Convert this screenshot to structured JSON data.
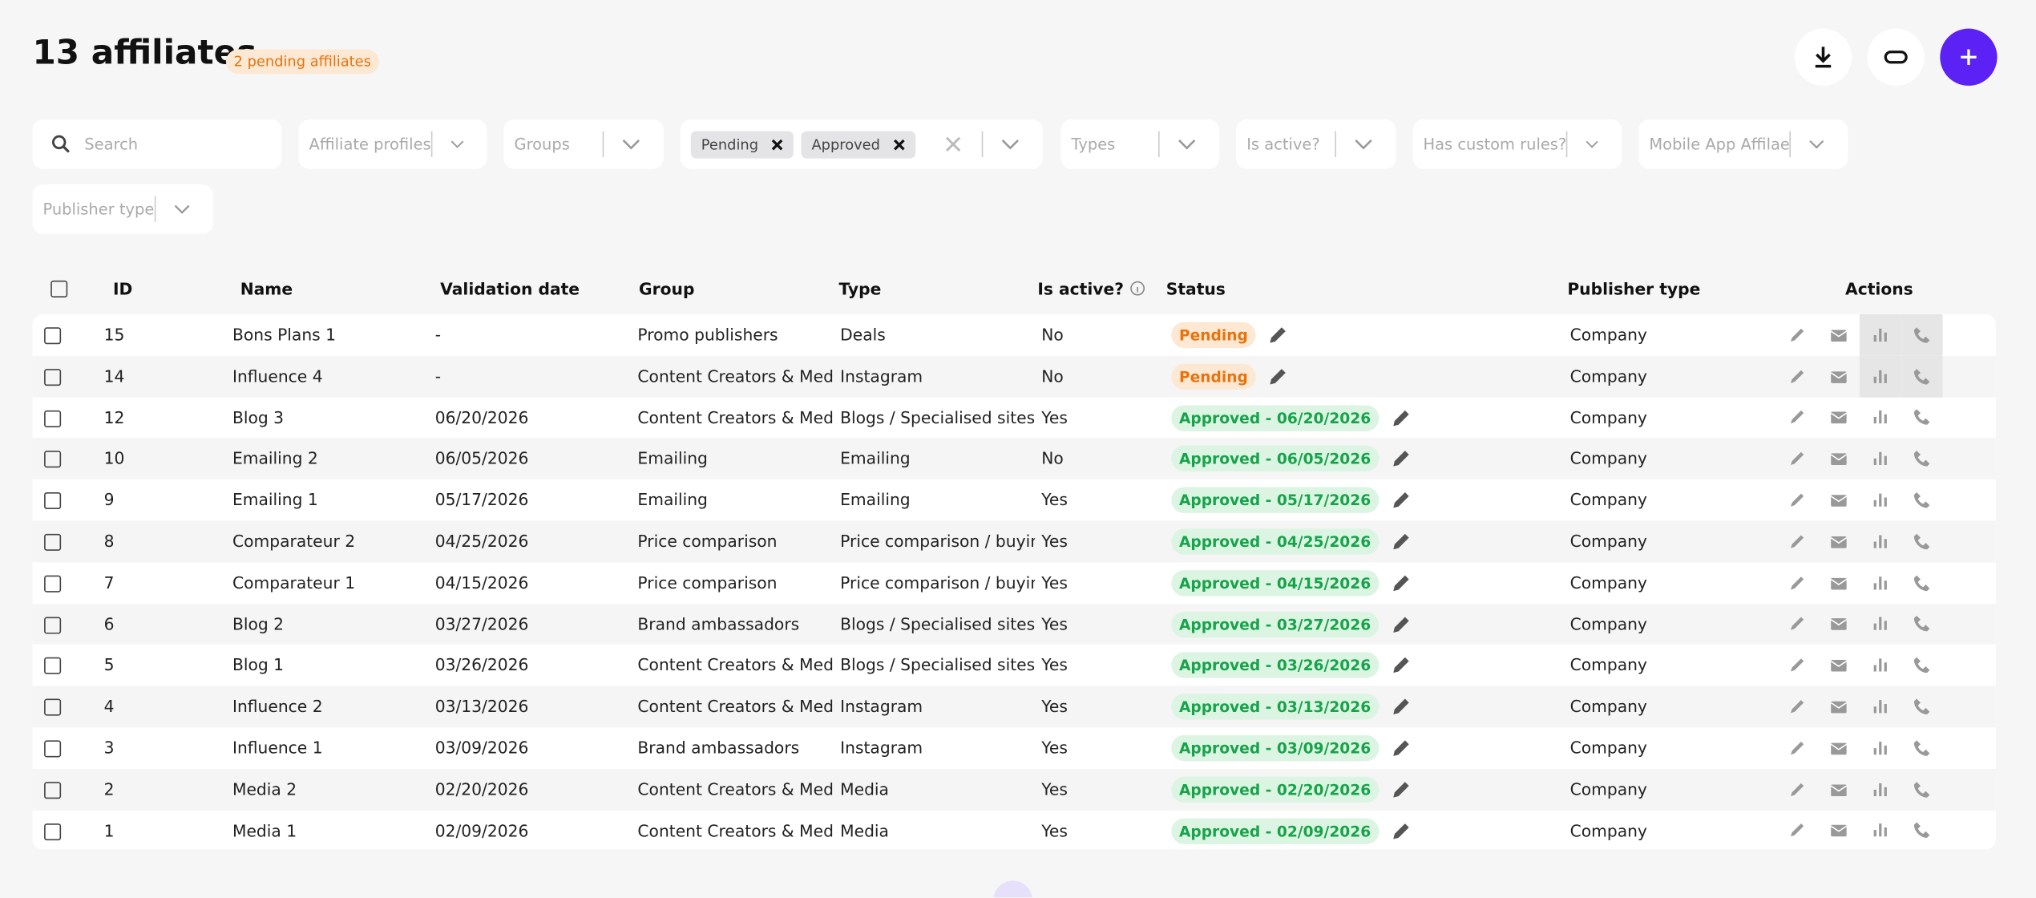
{
  "header": {
    "title": "13 affiliates",
    "badge": "2 pending affiliates"
  },
  "filters": {
    "search": "Search",
    "selects": [
      "Affiliate profiles",
      "Groups"
    ],
    "status_chips": [
      "Pending",
      "Approved"
    ],
    "more_selects": [
      "Types",
      "Is active?",
      "Has custom rules?",
      "Mobile App Affilae",
      "Publisher type"
    ]
  },
  "table": {
    "columns": [
      "ID",
      "Name",
      "Validation date",
      "Group",
      "Type",
      "Is active?",
      "Status",
      "Publisher type",
      "Actions"
    ],
    "rows": [
      [
        "15",
        "Bons Plans 1",
        "-",
        "Promo publishers",
        "Deals",
        "No",
        "Pending",
        "Company"
      ],
      [
        "14",
        "Influence 4",
        "-",
        "Content Creators & Media",
        "Instagram",
        "No",
        "Pending",
        "Company"
      ],
      [
        "12",
        "Blog 3",
        "06/20/2026",
        "Content Creators & Media",
        "Blogs / Specialised sites",
        "Yes",
        "Approved - 06/20/2026",
        "Company"
      ],
      [
        "10",
        "Emailing 2",
        "06/05/2026",
        "Emailing",
        "Emailing",
        "No",
        "Approved - 06/05/2026",
        "Company"
      ],
      [
        "9",
        "Emailing 1",
        "05/17/2026",
        "Emailing",
        "Emailing",
        "Yes",
        "Approved - 05/17/2026",
        "Company"
      ],
      [
        "8",
        "Comparateur 2",
        "04/25/2026",
        "Price comparison",
        "Price comparison / buying g",
        "Yes",
        "Approved - 04/25/2026",
        "Company"
      ],
      [
        "7",
        "Comparateur 1",
        "04/15/2026",
        "Price comparison",
        "Price comparison / buying g",
        "Yes",
        "Approved - 04/15/2026",
        "Company"
      ],
      [
        "6",
        "Blog 2",
        "03/27/2026",
        "Brand ambassadors",
        "Blogs / Specialised sites",
        "Yes",
        "Approved - 03/27/2026",
        "Company"
      ],
      [
        "5",
        "Blog 1",
        "03/26/2026",
        "Content Creators & Media",
        "Blogs / Specialised sites",
        "Yes",
        "Approved - 03/26/2026",
        "Company"
      ],
      [
        "4",
        "Influence 2",
        "03/13/2026",
        "Content Creators & Media",
        "Instagram",
        "Yes",
        "Approved - 03/13/2026",
        "Company"
      ],
      [
        "3",
        "Influence 1",
        "03/09/2026",
        "Brand ambassadors",
        "Instagram",
        "Yes",
        "Approved - 03/09/2026",
        "Company"
      ],
      [
        "2",
        "Media 2",
        "02/20/2026",
        "Content Creators & Media",
        "Media",
        "Yes",
        "Approved - 02/20/2026",
        "Company"
      ],
      [
        "1",
        "Media 1",
        "02/09/2026",
        "Content Creators & Media",
        "Media",
        "Yes",
        "Approved - 02/09/2026",
        "Company"
      ]
    ]
  }
}
